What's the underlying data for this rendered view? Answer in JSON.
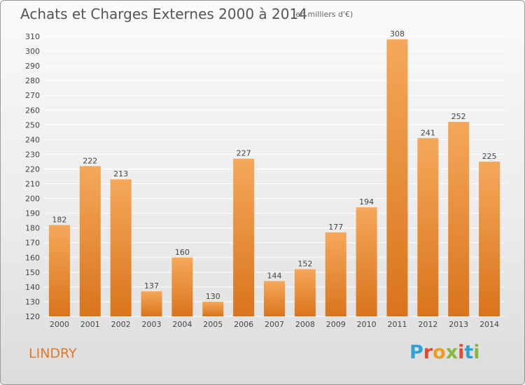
{
  "header": {
    "title": "Achats et Charges Externes 2000 à 2014",
    "subtitle": "(en milliers d'€)"
  },
  "footer": {
    "commune": "LINDRY",
    "logo": [
      "P",
      "r",
      "o",
      "x",
      "i",
      "t",
      "i"
    ]
  },
  "colors": {
    "bar_top": "#f5a85a",
    "bar_bottom": "#d9741c",
    "grid": "#ffffff",
    "commune_text": "#e07a2a"
  },
  "chart_data": {
    "type": "bar",
    "categories": [
      "2000",
      "2001",
      "2002",
      "2003",
      "2004",
      "2005",
      "2006",
      "2007",
      "2008",
      "2009",
      "2010",
      "2011",
      "2012",
      "2013",
      "2014"
    ],
    "values": [
      182,
      222,
      213,
      137,
      160,
      130,
      227,
      144,
      152,
      177,
      194,
      308,
      241,
      252,
      225
    ],
    "title": "Achats et Charges Externes 2000 à 2014",
    "ylim": [
      120,
      310
    ],
    "yticks": [
      120,
      130,
      140,
      150,
      160,
      170,
      180,
      190,
      200,
      210,
      220,
      230,
      240,
      250,
      260,
      270,
      280,
      290,
      300,
      310
    ],
    "grid": true,
    "data_labels": true
  }
}
